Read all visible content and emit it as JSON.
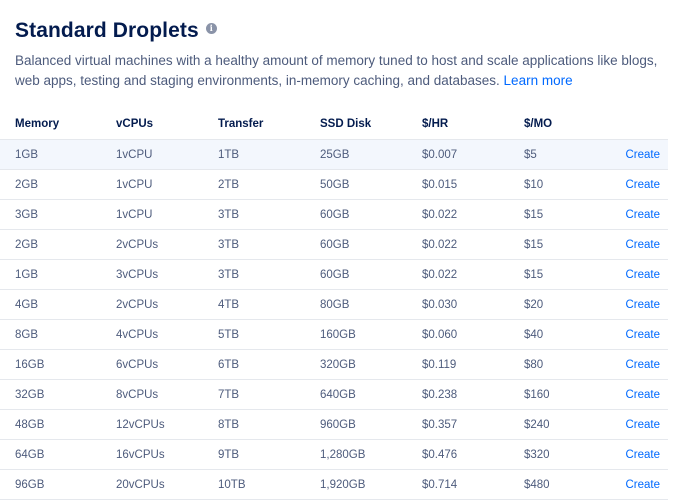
{
  "header": {
    "title": "Standard Droplets",
    "info_icon_glyph": "i"
  },
  "description": {
    "text": "Balanced virtual machines with a healthy amount of memory tuned to host and scale applications like blogs, web apps, testing and staging environments, in-memory caching, and databases.",
    "link": "Learn more"
  },
  "table": {
    "columns": [
      "Memory",
      "vCPUs",
      "Transfer",
      "SSD Disk",
      "$/HR",
      "$/MO",
      ""
    ],
    "action_label": "Create",
    "rows": [
      {
        "memory": "1GB",
        "vcpus": "1vCPU",
        "transfer": "1TB",
        "disk": "25GB",
        "hr": "$0.007",
        "mo": "$5"
      },
      {
        "memory": "2GB",
        "vcpus": "1vCPU",
        "transfer": "2TB",
        "disk": "50GB",
        "hr": "$0.015",
        "mo": "$10"
      },
      {
        "memory": "3GB",
        "vcpus": "1vCPU",
        "transfer": "3TB",
        "disk": "60GB",
        "hr": "$0.022",
        "mo": "$15"
      },
      {
        "memory": "2GB",
        "vcpus": "2vCPUs",
        "transfer": "3TB",
        "disk": "60GB",
        "hr": "$0.022",
        "mo": "$15"
      },
      {
        "memory": "1GB",
        "vcpus": "3vCPUs",
        "transfer": "3TB",
        "disk": "60GB",
        "hr": "$0.022",
        "mo": "$15"
      },
      {
        "memory": "4GB",
        "vcpus": "2vCPUs",
        "transfer": "4TB",
        "disk": "80GB",
        "hr": "$0.030",
        "mo": "$20"
      },
      {
        "memory": "8GB",
        "vcpus": "4vCPUs",
        "transfer": "5TB",
        "disk": "160GB",
        "hr": "$0.060",
        "mo": "$40"
      },
      {
        "memory": "16GB",
        "vcpus": "6vCPUs",
        "transfer": "6TB",
        "disk": "320GB",
        "hr": "$0.119",
        "mo": "$80"
      },
      {
        "memory": "32GB",
        "vcpus": "8vCPUs",
        "transfer": "7TB",
        "disk": "640GB",
        "hr": "$0.238",
        "mo": "$160"
      },
      {
        "memory": "48GB",
        "vcpus": "12vCPUs",
        "transfer": "8TB",
        "disk": "960GB",
        "hr": "$0.357",
        "mo": "$240"
      },
      {
        "memory": "64GB",
        "vcpus": "16vCPUs",
        "transfer": "9TB",
        "disk": "1,280GB",
        "hr": "$0.476",
        "mo": "$320"
      },
      {
        "memory": "96GB",
        "vcpus": "20vCPUs",
        "transfer": "10TB",
        "disk": "1,920GB",
        "hr": "$0.714",
        "mo": "$480"
      }
    ]
  }
}
